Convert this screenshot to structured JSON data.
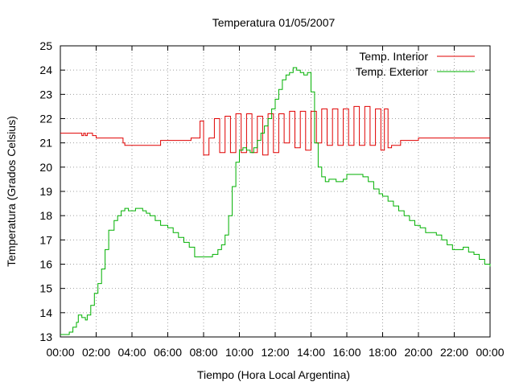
{
  "chart_data": {
    "type": "line",
    "title": "Temperatura 01/05/2007",
    "xlabel": "Tiempo (Hora Local Argentina)",
    "ylabel": "Temperatura (Grados Celsius)",
    "xlim": [
      0,
      24
    ],
    "ylim": [
      13,
      25
    ],
    "grid": true,
    "legend_position": "top-right",
    "x_tick_labels": [
      "00:00",
      "02:00",
      "04:00",
      "06:00",
      "08:00",
      "10:00",
      "12:00",
      "14:00",
      "16:00",
      "18:00",
      "20:00",
      "22:00",
      "00:00"
    ],
    "y_tick_labels": [
      "13",
      "14",
      "15",
      "16",
      "17",
      "18",
      "19",
      "20",
      "21",
      "22",
      "23",
      "24",
      "25"
    ],
    "series": [
      {
        "name": "Temp. Interior",
        "color": "#e00000",
        "x": [
          0,
          1.0,
          1.2,
          1.3,
          1.4,
          1.5,
          1.8,
          2.0,
          3.0,
          3.5,
          3.6,
          5.0,
          5.3,
          5.6,
          6.0,
          7.0,
          7.3,
          7.6,
          7.8,
          8.0,
          8.3,
          8.6,
          8.9,
          9.2,
          9.5,
          9.8,
          10.1,
          10.4,
          10.7,
          11.0,
          11.3,
          11.6,
          11.9,
          12.2,
          12.5,
          12.8,
          13.1,
          13.4,
          13.7,
          14.0,
          14.3,
          14.6,
          14.9,
          15.2,
          15.5,
          15.8,
          16.1,
          16.4,
          16.7,
          17.0,
          17.3,
          17.6,
          17.9,
          18.1,
          18.3,
          18.5,
          18.8,
          19.0,
          19.5,
          20.0,
          20.5,
          21.0,
          22.0,
          24.0
        ],
        "values": [
          21.4,
          21.4,
          21.3,
          21.4,
          21.3,
          21.4,
          21.3,
          21.2,
          21.2,
          21.0,
          20.9,
          20.9,
          20.9,
          21.1,
          21.1,
          21.1,
          21.2,
          21.2,
          21.9,
          20.5,
          21.2,
          22.0,
          20.6,
          22.1,
          20.6,
          22.2,
          20.6,
          22.2,
          20.6,
          22.1,
          20.5,
          22.2,
          20.6,
          22.2,
          21.0,
          22.3,
          20.8,
          22.3,
          20.7,
          22.3,
          21.0,
          22.4,
          20.9,
          22.4,
          20.9,
          22.4,
          20.9,
          22.5,
          20.9,
          22.5,
          20.9,
          22.4,
          20.7,
          22.4,
          20.8,
          20.9,
          20.9,
          21.1,
          21.1,
          21.2,
          21.2,
          21.2,
          21.2,
          21.2
        ]
      },
      {
        "name": "Temp. Exterior",
        "color": "#00b000",
        "x": [
          0,
          0.5,
          0.7,
          0.9,
          1.0,
          1.2,
          1.4,
          1.5,
          1.7,
          1.9,
          2.1,
          2.3,
          2.5,
          2.7,
          3.0,
          3.2,
          3.4,
          3.6,
          3.8,
          4.0,
          4.2,
          4.4,
          4.6,
          4.8,
          5.0,
          5.3,
          5.6,
          6.0,
          6.3,
          6.6,
          6.9,
          7.2,
          7.5,
          7.8,
          8.0,
          8.2,
          8.5,
          8.8,
          9.0,
          9.2,
          9.4,
          9.6,
          9.8,
          10.0,
          10.2,
          10.4,
          10.6,
          10.8,
          11.0,
          11.2,
          11.4,
          11.6,
          11.8,
          12.0,
          12.2,
          12.4,
          12.6,
          12.8,
          13.0,
          13.2,
          13.4,
          13.6,
          13.8,
          14.0,
          14.2,
          14.4,
          14.6,
          14.8,
          15.0,
          15.2,
          15.4,
          15.6,
          15.8,
          16.0,
          16.3,
          16.6,
          16.9,
          17.2,
          17.5,
          17.8,
          18.0,
          18.3,
          18.6,
          18.9,
          19.2,
          19.5,
          19.8,
          20.1,
          20.4,
          20.7,
          21.0,
          21.3,
          21.6,
          21.9,
          22.2,
          22.5,
          22.8,
          23.1,
          23.4,
          23.7,
          24.0
        ],
        "values": [
          13.1,
          13.2,
          13.4,
          13.6,
          13.9,
          13.8,
          13.7,
          13.9,
          14.3,
          14.8,
          15.2,
          15.8,
          16.6,
          17.4,
          17.8,
          18.0,
          18.2,
          18.3,
          18.2,
          18.2,
          18.3,
          18.3,
          18.2,
          18.1,
          18.0,
          17.8,
          17.6,
          17.5,
          17.3,
          17.1,
          16.9,
          16.7,
          16.3,
          16.3,
          16.3,
          16.3,
          16.4,
          16.6,
          16.8,
          17.2,
          18.0,
          19.2,
          20.2,
          20.7,
          20.8,
          20.7,
          20.6,
          20.8,
          21.1,
          21.4,
          21.7,
          22.0,
          22.4,
          22.8,
          23.2,
          23.6,
          23.8,
          23.9,
          24.1,
          24.0,
          23.9,
          23.8,
          23.9,
          23.1,
          21.0,
          20.0,
          19.6,
          19.4,
          19.5,
          19.5,
          19.4,
          19.4,
          19.5,
          19.7,
          19.7,
          19.7,
          19.6,
          19.4,
          19.1,
          18.9,
          18.8,
          18.6,
          18.4,
          18.2,
          18.0,
          17.8,
          17.6,
          17.5,
          17.3,
          17.3,
          17.2,
          17.0,
          16.8,
          16.6,
          16.6,
          16.7,
          16.5,
          16.4,
          16.2,
          16.0,
          15.9
        ]
      }
    ]
  }
}
